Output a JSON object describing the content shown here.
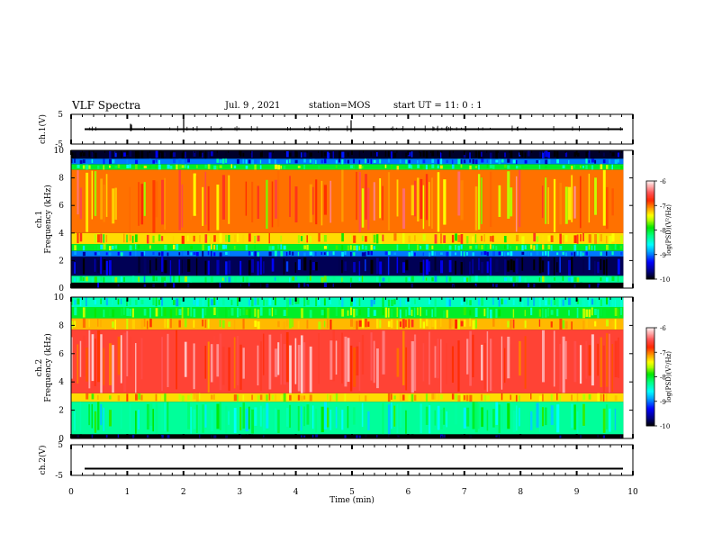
{
  "header": {
    "title": "VLF Spectra",
    "date": "Jul. 9 , 2021",
    "station": "station=MOS",
    "start": "start UT =  11: 0  : 1"
  },
  "chart_data": [
    {
      "type": "line",
      "panel": "ch1-waveform",
      "ylabel": "ch.1(V)",
      "yticks": [
        "5",
        "-5"
      ],
      "ylim": [
        -5,
        5
      ],
      "xlim": [
        0,
        10
      ],
      "baseline": 0,
      "color": "#000000"
    },
    {
      "type": "heatmap",
      "panel": "ch1-spectrogram",
      "ylabel": "ch.1\nFrequency (kHz)",
      "ylabel_line1": "ch.1",
      "ylabel_line2": "Frequency (kHz)",
      "yticks": [
        "0",
        "2",
        "4",
        "6",
        "8",
        "10"
      ],
      "ylim": [
        0,
        10
      ],
      "xlim": [
        0,
        9.83
      ],
      "bands_khz": [
        {
          "from": 0,
          "to": 0.4,
          "level": -10
        },
        {
          "from": 0.4,
          "to": 0.9,
          "level": -8.3
        },
        {
          "from": 0.9,
          "to": 2.3,
          "level": -9.8
        },
        {
          "from": 2.3,
          "to": 2.7,
          "level": -9.0
        },
        {
          "from": 2.7,
          "to": 3.2,
          "level": -8.0
        },
        {
          "from": 3.2,
          "to": 4.0,
          "level": -7.3
        },
        {
          "from": 4.0,
          "to": 8.6,
          "level": -7.0
        },
        {
          "from": 8.6,
          "to": 9.0,
          "level": -8.0
        },
        {
          "from": 9.0,
          "to": 9.4,
          "level": -9.0
        },
        {
          "from": 9.4,
          "to": 10,
          "level": -9.9
        }
      ],
      "colorbar": {
        "ticks": [
          "-6",
          "-7",
          "-8",
          "-9",
          "-10"
        ],
        "label": "log(PSD)(V²/Hz)",
        "range": [
          -10,
          -6
        ]
      }
    },
    {
      "type": "heatmap",
      "panel": "ch2-spectrogram",
      "ylabel": "ch.2\nFrequency (kHz)",
      "ylabel_line1": "ch.2",
      "ylabel_line2": "Frequency (kHz)",
      "yticks": [
        "0",
        "2",
        "4",
        "6",
        "8",
        "10"
      ],
      "ylim": [
        0,
        10
      ],
      "xlim": [
        0,
        9.83
      ],
      "bands_khz": [
        {
          "from": 0,
          "to": 0.3,
          "level": -10
        },
        {
          "from": 0.3,
          "to": 2.6,
          "level": -8.3
        },
        {
          "from": 2.6,
          "to": 3.2,
          "level": -7.3
        },
        {
          "from": 3.2,
          "to": 7.7,
          "level": -6.6
        },
        {
          "from": 7.7,
          "to": 8.5,
          "level": -7.2
        },
        {
          "from": 8.5,
          "to": 9.3,
          "level": -8.0
        },
        {
          "from": 9.3,
          "to": 10,
          "level": -8.4
        }
      ],
      "colorbar": {
        "ticks": [
          "-6",
          "-7",
          "-8",
          "-9",
          "-10"
        ],
        "label": "log(PSD)(V²/Hz)",
        "range": [
          -10,
          -6
        ]
      }
    },
    {
      "type": "line",
      "panel": "ch2-waveform",
      "ylabel": "ch.2(V)",
      "yticks": [
        "5",
        "-5"
      ],
      "ylim": [
        -5,
        5
      ],
      "xlim": [
        0,
        10
      ],
      "baseline": -2.8,
      "color": "#000000"
    }
  ],
  "xaxis": {
    "label": "Time (min)",
    "ticks": [
      "0",
      "1",
      "2",
      "3",
      "4",
      "5",
      "6",
      "7",
      "8",
      "9",
      "10"
    ]
  },
  "colors": {
    "black": "#000000",
    "navy": "#00007f",
    "blue": "#0000ff",
    "cyan": "#00ffff",
    "green": "#00ff00",
    "yellow": "#ffff00",
    "orange": "#ff9900",
    "red": "#ff0000",
    "pink_background": "#ffffff"
  }
}
